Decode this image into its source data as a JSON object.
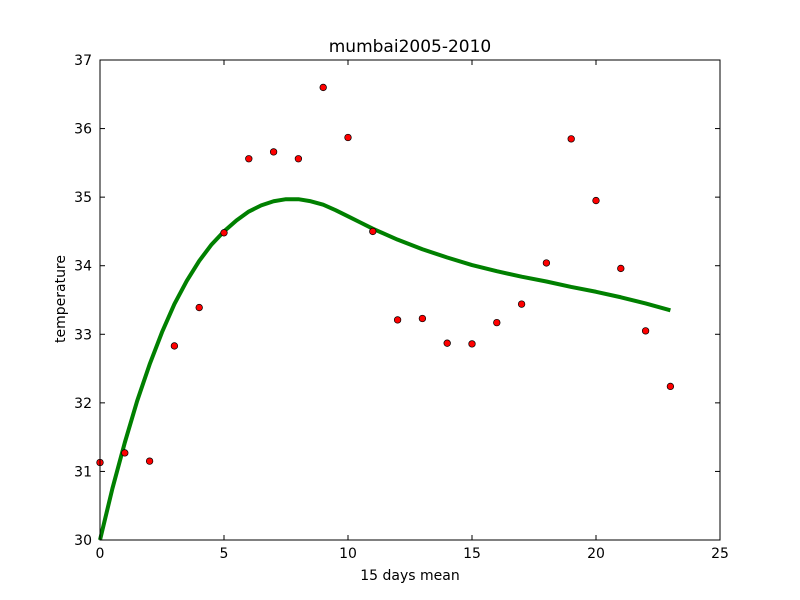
{
  "chart_data": {
    "type": "scatter",
    "title": "mumbai2005-2010",
    "xlabel": "15 days mean",
    "ylabel": "temperature",
    "xlim": [
      0,
      25
    ],
    "ylim": [
      30,
      37
    ],
    "xticks": [
      0,
      5,
      10,
      15,
      20,
      25
    ],
    "yticks": [
      30,
      31,
      32,
      33,
      34,
      35,
      36,
      37
    ],
    "grid": false,
    "series": [
      {
        "type": "scatter",
        "color": "#ff0000",
        "x": [
          0,
          1,
          2,
          3,
          4,
          5,
          6,
          7,
          8,
          9,
          10,
          11,
          12,
          13,
          14,
          15,
          16,
          17,
          18,
          19,
          20,
          21,
          22,
          23
        ],
        "y": [
          31.13,
          31.27,
          31.15,
          32.83,
          33.39,
          34.48,
          35.56,
          35.66,
          35.56,
          36.6,
          35.87,
          34.5,
          33.21,
          33.23,
          32.87,
          32.86,
          33.17,
          33.44,
          34.04,
          35.85,
          34.95,
          33.96,
          33.05,
          32.24
        ]
      },
      {
        "type": "line",
        "color": "#008000",
        "x": [
          0,
          0.5,
          1,
          1.5,
          2,
          2.5,
          3,
          3.5,
          4,
          4.5,
          5,
          5.5,
          6,
          6.5,
          7,
          7.5,
          8,
          8.5,
          9,
          9.5,
          10,
          10.5,
          11,
          11.5,
          12,
          13,
          14,
          15,
          16,
          17,
          18,
          19,
          20,
          21,
          22,
          23
        ],
        "y": [
          30.0,
          30.75,
          31.42,
          32.03,
          32.56,
          33.03,
          33.44,
          33.78,
          34.07,
          34.31,
          34.5,
          34.66,
          34.79,
          34.88,
          34.94,
          34.97,
          34.97,
          34.94,
          34.89,
          34.81,
          34.72,
          34.63,
          34.54,
          34.46,
          34.38,
          34.24,
          34.12,
          34.01,
          33.92,
          33.84,
          33.77,
          33.69,
          33.62,
          33.54,
          33.45,
          33.35
        ]
      }
    ]
  }
}
